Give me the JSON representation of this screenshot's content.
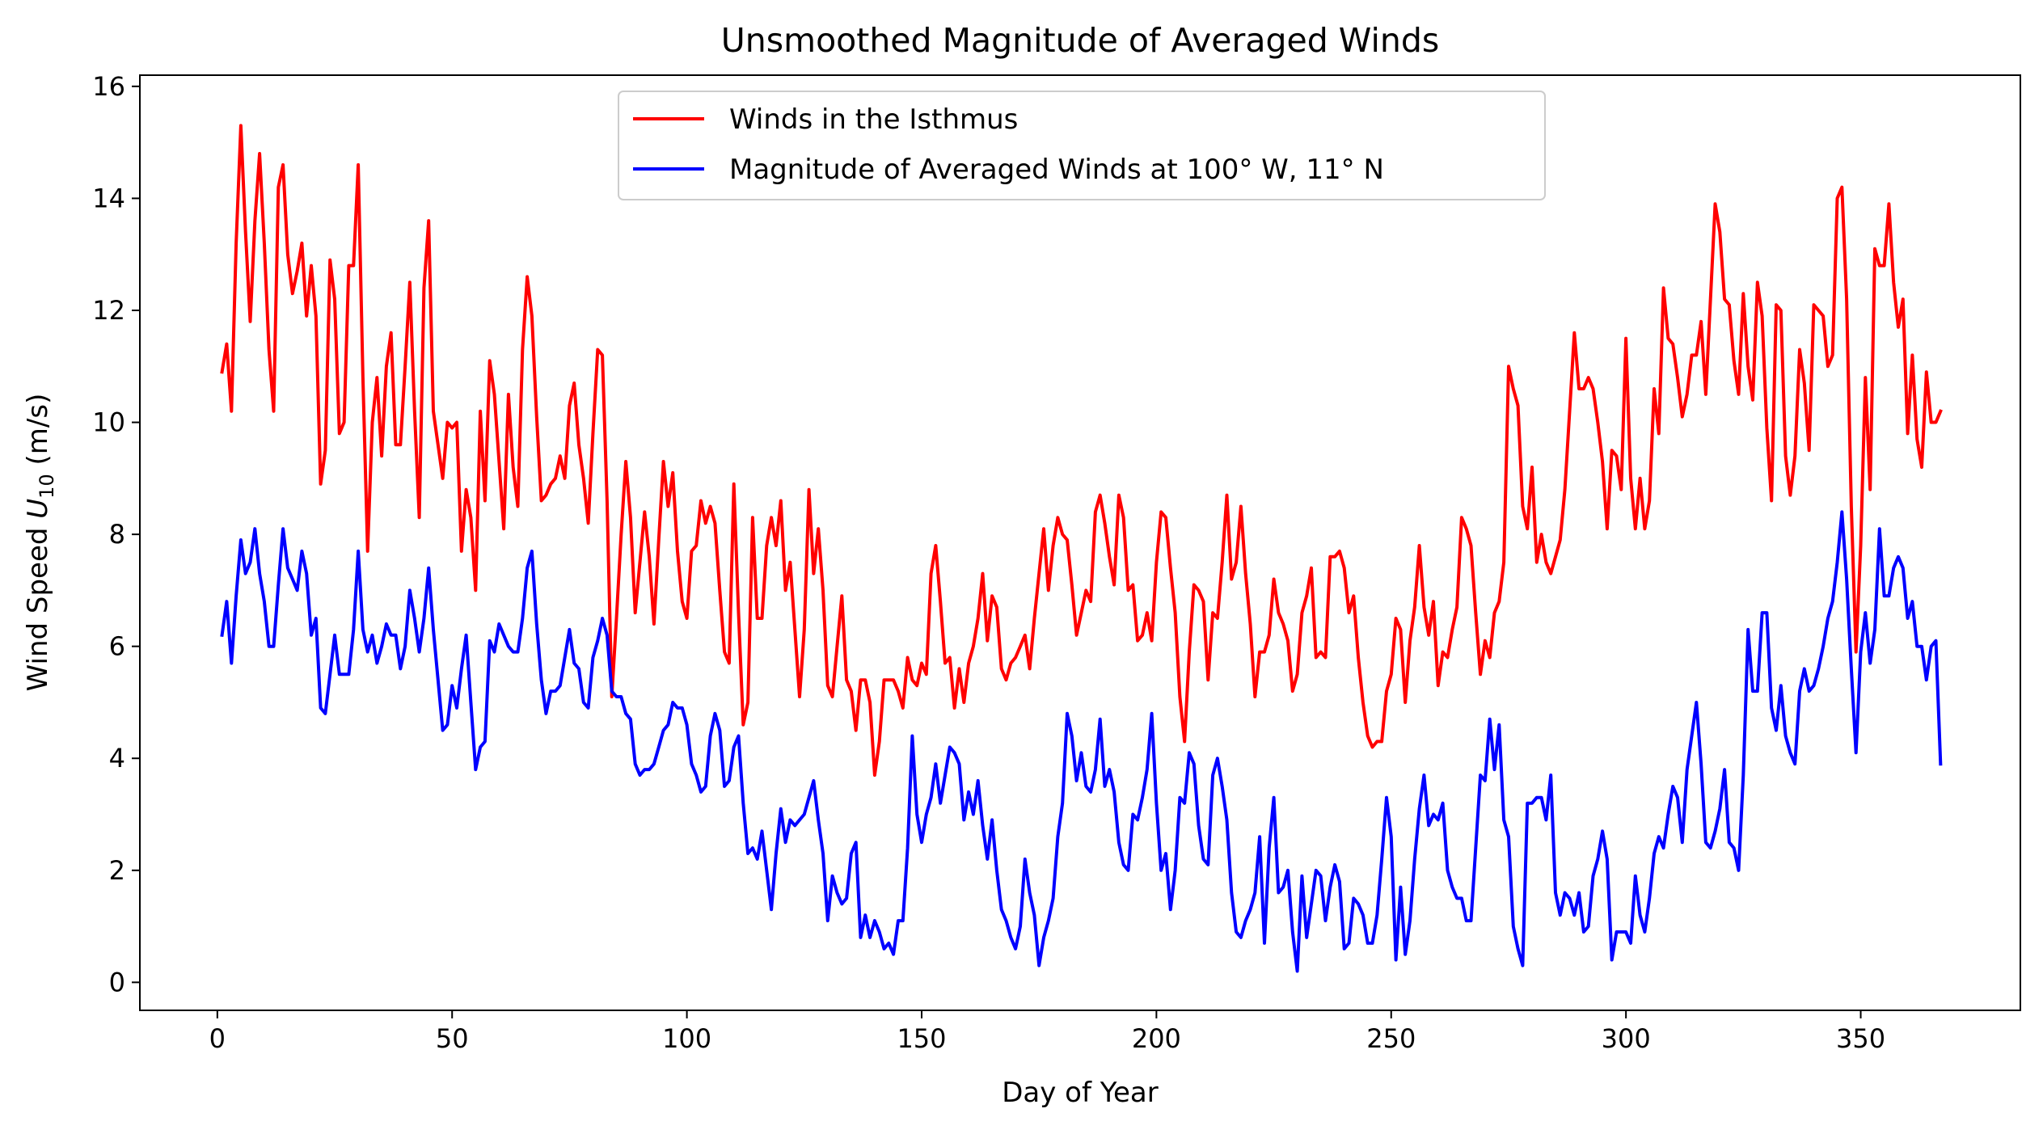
{
  "chart_data": {
    "type": "line",
    "title": "Unsmoothed Magnitude of Averaged Winds",
    "xlabel": "Day of Year",
    "ylabel_prefix": "Wind Speed ",
    "ylabel_var": "U",
    "ylabel_sub": "10",
    "ylabel_suffix": " (m/s)",
    "xlim": [
      -16.5,
      384
    ],
    "ylim": [
      -0.5,
      16.2
    ],
    "xticks": [
      0,
      50,
      100,
      150,
      200,
      250,
      300,
      350
    ],
    "yticks": [
      0,
      2,
      4,
      6,
      8,
      10,
      12,
      14,
      16
    ],
    "grid": false,
    "legend_position": "upper-center",
    "x_start": 1,
    "x_step": 1,
    "series": [
      {
        "name": "Winds in the Isthmus",
        "color": "#ff0000",
        "values": [
          10.9,
          11.4,
          10.2,
          13.2,
          15.3,
          13.4,
          11.8,
          13.6,
          14.8,
          13.2,
          11.3,
          10.2,
          14.2,
          14.6,
          13.0,
          12.3,
          12.7,
          13.2,
          11.9,
          12.8,
          11.9,
          8.9,
          9.5,
          12.9,
          12.2,
          9.8,
          10.0,
          12.8,
          12.8,
          14.6,
          10.8,
          7.7,
          10.0,
          10.8,
          9.4,
          11.0,
          11.6,
          9.6,
          9.6,
          11.0,
          12.5,
          10.2,
          8.3,
          12.4,
          13.6,
          10.2,
          9.6,
          9.0,
          10.0,
          9.9,
          10.0,
          7.7,
          8.8,
          8.3,
          7.0,
          10.2,
          8.6,
          11.1,
          10.5,
          9.3,
          8.1,
          10.5,
          9.2,
          8.5,
          11.3,
          12.6,
          11.9,
          10.1,
          8.6,
          8.7,
          8.9,
          9.0,
          9.4,
          9.0,
          10.3,
          10.7,
          9.6,
          9.0,
          8.2,
          9.8,
          11.3,
          11.2,
          8.6,
          5.1,
          6.5,
          8.0,
          9.3,
          8.3,
          6.6,
          7.5,
          8.4,
          7.6,
          6.4,
          7.9,
          9.3,
          8.5,
          9.1,
          7.7,
          6.8,
          6.5,
          7.7,
          7.8,
          8.6,
          8.2,
          8.5,
          8.2,
          7.0,
          5.9,
          5.7,
          8.9,
          6.6,
          4.6,
          5.0,
          8.3,
          6.5,
          6.5,
          7.8,
          8.3,
          7.8,
          8.6,
          7.0,
          7.5,
          6.3,
          5.1,
          6.3,
          8.8,
          7.3,
          8.1,
          7.0,
          5.3,
          5.1,
          6.0,
          6.9,
          5.4,
          5.2,
          4.5,
          5.4,
          5.4,
          5.0,
          3.7,
          4.3,
          5.4,
          5.4,
          5.4,
          5.2,
          4.9,
          5.8,
          5.4,
          5.3,
          5.7,
          5.5,
          7.3,
          7.8,
          6.8,
          5.7,
          5.8,
          4.9,
          5.6,
          5.0,
          5.7,
          6.0,
          6.5,
          7.3,
          6.1,
          6.9,
          6.7,
          5.6,
          5.4,
          5.7,
          5.8,
          6.0,
          6.2,
          5.6,
          6.5,
          7.3,
          8.1,
          7.0,
          7.8,
          8.3,
          8.0,
          7.9,
          7.1,
          6.2,
          6.6,
          7.0,
          6.8,
          8.4,
          8.7,
          8.2,
          7.6,
          7.1,
          8.7,
          8.3,
          7.0,
          7.1,
          6.1,
          6.2,
          6.6,
          6.1,
          7.5,
          8.4,
          8.3,
          7.4,
          6.6,
          5.1,
          4.3,
          5.9,
          7.1,
          7.0,
          6.8,
          5.4,
          6.6,
          6.5,
          7.5,
          8.7,
          7.2,
          7.5,
          8.5,
          7.3,
          6.4,
          5.1,
          5.9,
          5.9,
          6.2,
          7.2,
          6.6,
          6.4,
          6.1,
          5.2,
          5.5,
          6.6,
          6.9,
          7.4,
          5.8,
          5.9,
          5.8,
          7.6,
          7.6,
          7.7,
          7.4,
          6.6,
          6.9,
          5.8,
          5.0,
          4.4,
          4.2,
          4.3,
          4.3,
          5.2,
          5.5,
          6.5,
          6.3,
          5.0,
          6.1,
          6.7,
          7.8,
          6.7,
          6.2,
          6.8,
          5.3,
          5.9,
          5.8,
          6.3,
          6.7,
          8.3,
          8.1,
          7.8,
          6.6,
          5.5,
          6.1,
          5.8,
          6.6,
          6.8,
          7.5,
          11.0,
          10.6,
          10.3,
          8.5,
          8.1,
          9.2,
          7.5,
          8.0,
          7.5,
          7.3,
          7.6,
          7.9,
          8.8,
          10.2,
          11.6,
          10.6,
          10.6,
          10.8,
          10.6,
          10.0,
          9.3,
          8.1,
          9.5,
          9.4,
          8.8,
          11.5,
          9.0,
          8.1,
          9.0,
          8.1,
          8.6,
          10.6,
          9.8,
          12.4,
          11.5,
          11.4,
          10.8,
          10.1,
          10.5,
          11.2,
          11.2,
          11.8,
          10.5,
          12.2,
          13.9,
          13.4,
          12.2,
          12.1,
          11.1,
          10.5,
          12.3,
          11.0,
          10.4,
          12.5,
          11.9,
          9.9,
          8.6,
          12.1,
          12.0,
          9.4,
          8.7,
          9.4,
          11.3,
          10.7,
          9.5,
          12.1,
          12.0,
          11.9,
          11.0,
          11.2,
          14.0,
          14.2,
          12.2,
          8.5,
          5.9,
          7.8,
          10.8,
          8.8,
          13.1,
          12.8,
          12.8,
          13.9,
          12.5,
          11.7,
          12.2,
          9.8,
          11.2,
          9.7,
          9.2,
          10.9,
          10.0,
          10.0,
          10.2
        ]
      },
      {
        "name": "Magnitude of Averaged Winds at 100° W, 11° N",
        "color": "#0000ff",
        "values": [
          6.2,
          6.8,
          5.7,
          6.9,
          7.9,
          7.3,
          7.5,
          8.1,
          7.3,
          6.8,
          6.0,
          6.0,
          7.1,
          8.1,
          7.4,
          7.2,
          7.0,
          7.7,
          7.3,
          6.2,
          6.5,
          4.9,
          4.8,
          5.5,
          6.2,
          5.5,
          5.5,
          5.5,
          6.3,
          7.7,
          6.3,
          5.9,
          6.2,
          5.7,
          6.0,
          6.4,
          6.2,
          6.2,
          5.6,
          6.0,
          7.0,
          6.5,
          5.9,
          6.5,
          7.4,
          6.3,
          5.4,
          4.5,
          4.6,
          5.3,
          4.9,
          5.6,
          6.2,
          5.0,
          3.8,
          4.2,
          4.3,
          6.1,
          5.9,
          6.4,
          6.2,
          6.0,
          5.9,
          5.9,
          6.5,
          7.4,
          7.7,
          6.4,
          5.4,
          4.8,
          5.2,
          5.2,
          5.3,
          5.8,
          6.3,
          5.7,
          5.6,
          5.0,
          4.9,
          5.8,
          6.1,
          6.5,
          6.2,
          5.2,
          5.1,
          5.1,
          4.8,
          4.7,
          3.9,
          3.7,
          3.8,
          3.8,
          3.9,
          4.2,
          4.5,
          4.6,
          5.0,
          4.9,
          4.9,
          4.6,
          3.9,
          3.7,
          3.4,
          3.5,
          4.4,
          4.8,
          4.5,
          3.5,
          3.6,
          4.2,
          4.4,
          3.2,
          2.3,
          2.4,
          2.2,
          2.7,
          2.0,
          1.3,
          2.3,
          3.1,
          2.5,
          2.9,
          2.8,
          2.9,
          3.0,
          3.3,
          3.6,
          2.9,
          2.3,
          1.1,
          1.9,
          1.6,
          1.4,
          1.5,
          2.3,
          2.5,
          0.8,
          1.2,
          0.8,
          1.1,
          0.9,
          0.6,
          0.7,
          0.5,
          1.1,
          1.1,
          2.4,
          4.4,
          3.0,
          2.5,
          3.0,
          3.3,
          3.9,
          3.2,
          3.7,
          4.2,
          4.1,
          3.9,
          2.9,
          3.4,
          3.0,
          3.6,
          2.8,
          2.2,
          2.9,
          2.0,
          1.3,
          1.1,
          0.8,
          0.6,
          1.0,
          2.2,
          1.6,
          1.2,
          0.3,
          0.8,
          1.1,
          1.5,
          2.6,
          3.2,
          4.8,
          4.4,
          3.6,
          4.1,
          3.5,
          3.4,
          3.8,
          4.7,
          3.5,
          3.8,
          3.4,
          2.5,
          2.1,
          2.0,
          3.0,
          2.9,
          3.3,
          3.8,
          4.8,
          3.2,
          2.0,
          2.3,
          1.3,
          2.0,
          3.3,
          3.2,
          4.1,
          3.9,
          2.8,
          2.2,
          2.1,
          3.7,
          4.0,
          3.5,
          2.9,
          1.6,
          0.9,
          0.8,
          1.1,
          1.3,
          1.6,
          2.6,
          0.7,
          2.4,
          3.3,
          1.6,
          1.7,
          2.0,
          0.9,
          0.2,
          1.9,
          0.8,
          1.4,
          2.0,
          1.9,
          1.1,
          1.7,
          2.1,
          1.8,
          0.6,
          0.7,
          1.5,
          1.4,
          1.2,
          0.7,
          0.7,
          1.2,
          2.2,
          3.3,
          2.6,
          0.4,
          1.7,
          0.5,
          1.1,
          2.2,
          3.1,
          3.7,
          2.8,
          3.0,
          2.9,
          3.2,
          2.0,
          1.7,
          1.5,
          1.5,
          1.1,
          1.1,
          2.4,
          3.7,
          3.6,
          4.7,
          3.8,
          4.6,
          2.9,
          2.6,
          1.0,
          0.6,
          0.3,
          3.2,
          3.2,
          3.3,
          3.3,
          2.9,
          3.7,
          1.6,
          1.2,
          1.6,
          1.5,
          1.2,
          1.6,
          0.9,
          1.0,
          1.9,
          2.2,
          2.7,
          2.2,
          0.4,
          0.9,
          0.9,
          0.9,
          0.7,
          1.9,
          1.2,
          0.9,
          1.5,
          2.3,
          2.6,
          2.4,
          3.0,
          3.5,
          3.3,
          2.5,
          3.8,
          4.4,
          5.0,
          3.9,
          2.5,
          2.4,
          2.7,
          3.1,
          3.8,
          2.5,
          2.4,
          2.0,
          3.7,
          6.3,
          5.2,
          5.2,
          6.6,
          6.6,
          4.9,
          4.5,
          5.3,
          4.4,
          4.1,
          3.9,
          5.2,
          5.6,
          5.2,
          5.3,
          5.6,
          6.0,
          6.5,
          6.8,
          7.5,
          8.4,
          7.2,
          5.6,
          4.1,
          5.9,
          6.6,
          5.7,
          6.3,
          8.1,
          6.9,
          6.9,
          7.4,
          7.6,
          7.4,
          6.5,
          6.8,
          6.0,
          6.0,
          5.4,
          6.0,
          6.1,
          3.9
        ]
      }
    ]
  }
}
